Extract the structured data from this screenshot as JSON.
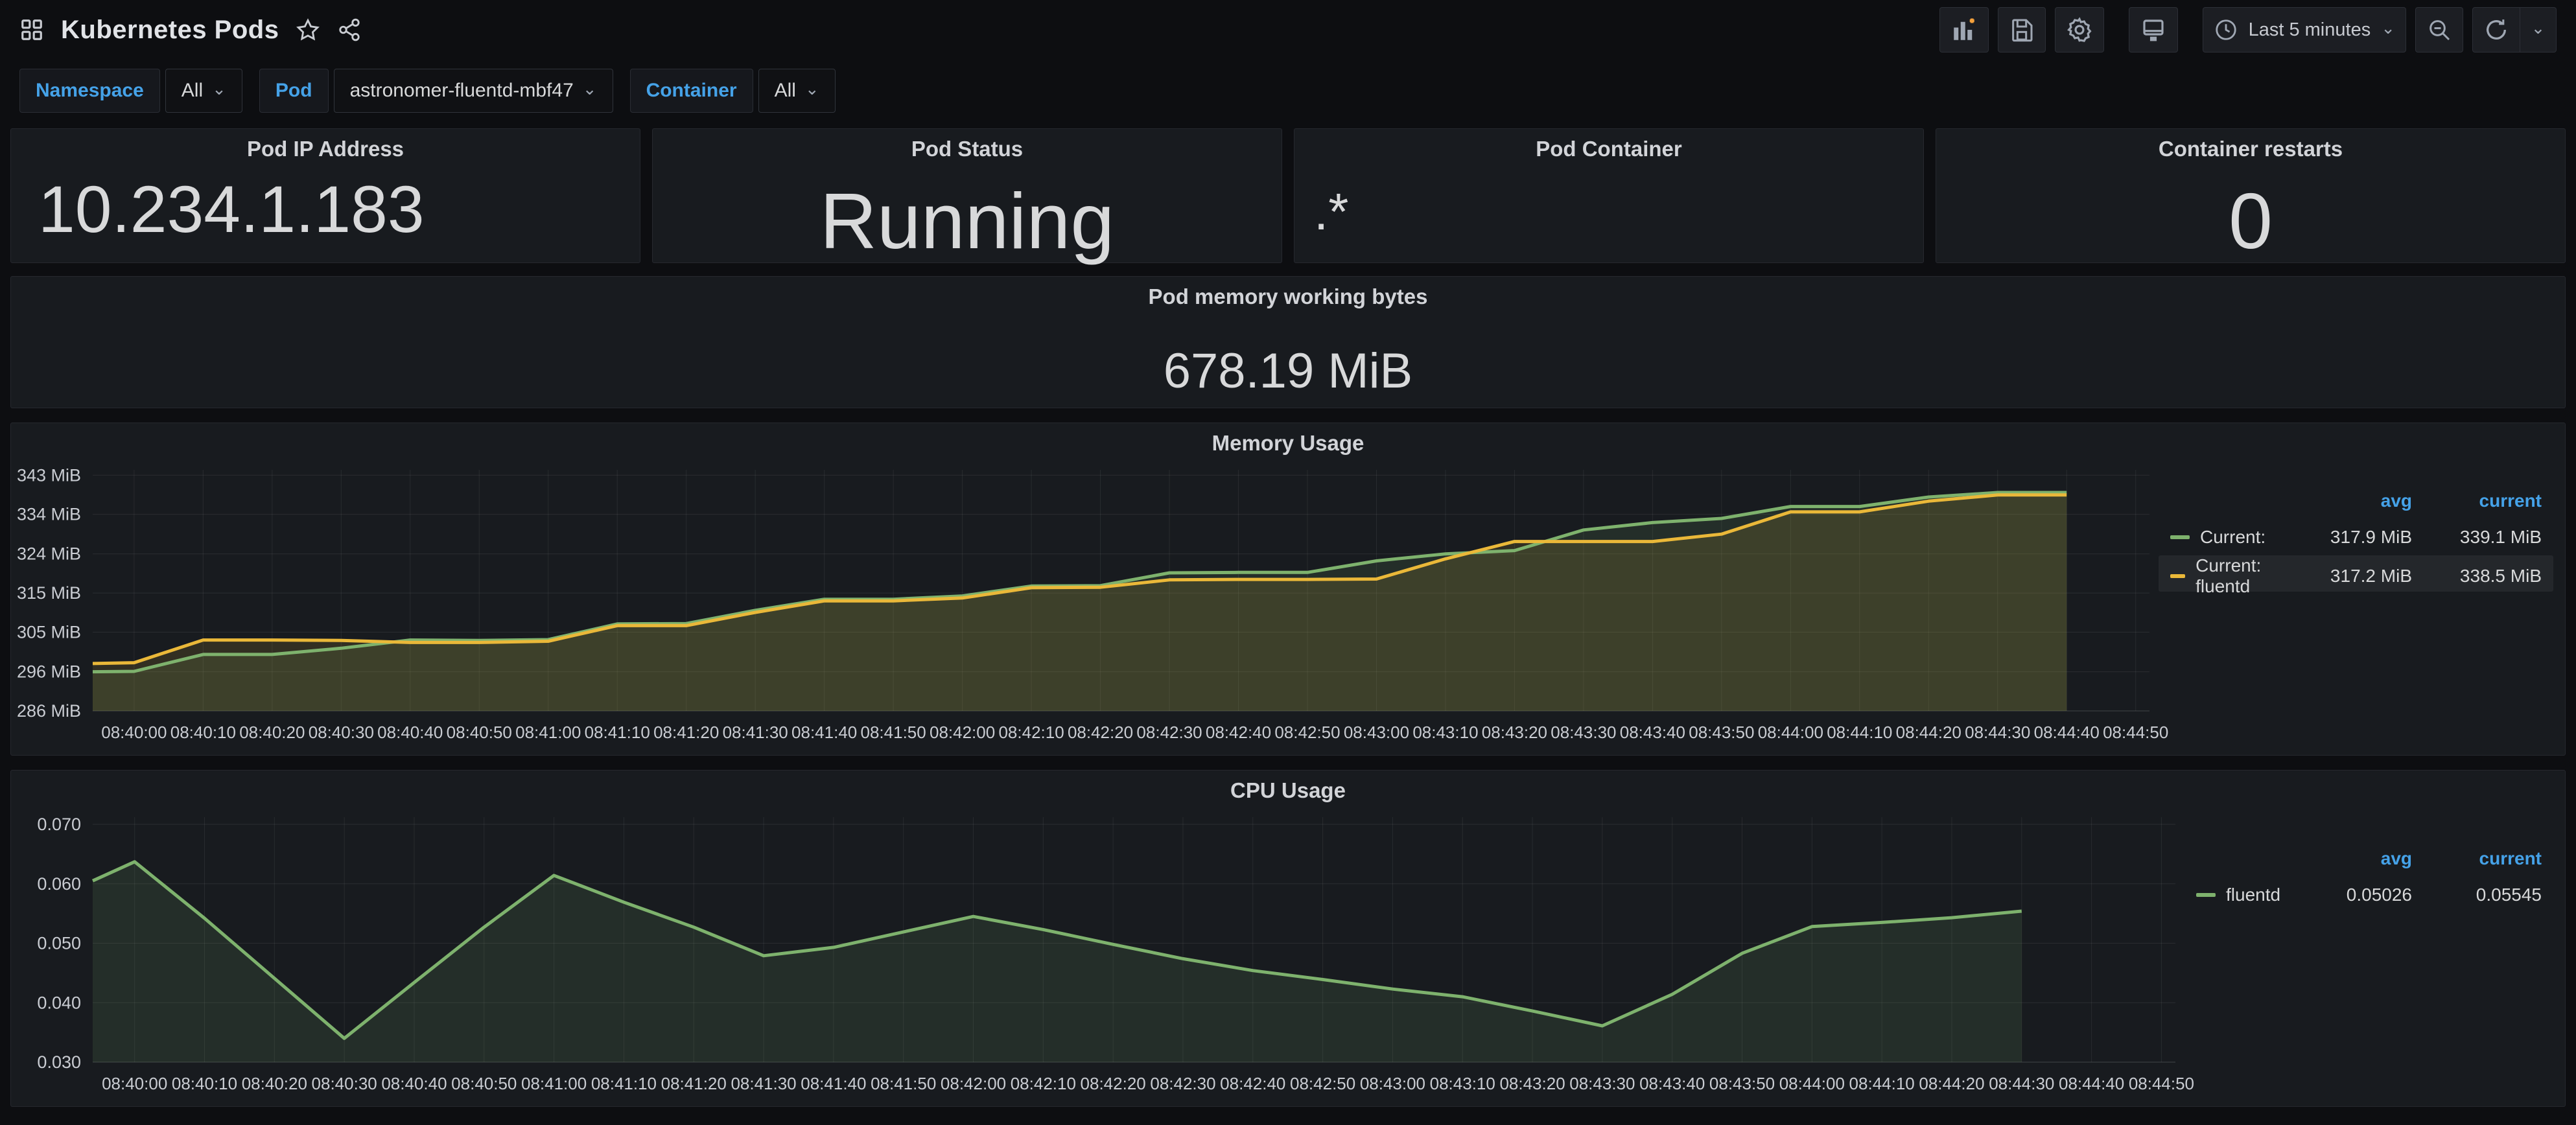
{
  "topbar": {
    "title": "Kubernetes Pods",
    "time_picker": {
      "label": "Last 5 minutes"
    }
  },
  "filters": [
    {
      "label": "Namespace",
      "value": "All"
    },
    {
      "label": "Pod",
      "value": "astronomer-fluentd-mbf47"
    },
    {
      "label": "Container",
      "value": "All"
    }
  ],
  "stats": [
    {
      "title": "Pod IP Address",
      "value": "10.234.1.183"
    },
    {
      "title": "Pod Status",
      "value": "Running"
    },
    {
      "title": "Pod Container",
      "value": ".*"
    },
    {
      "title": "Container restarts",
      "value": "0"
    }
  ],
  "memory_stat": {
    "title": "Pod memory working bytes",
    "value": "678.19 MiB"
  },
  "time_axis": {
    "start_seconds": 0,
    "step_seconds": 10,
    "labels": [
      "08:40:00",
      "08:40:10",
      "08:40:20",
      "08:40:30",
      "08:40:40",
      "08:40:50",
      "08:41:00",
      "08:41:10",
      "08:41:20",
      "08:41:30",
      "08:41:40",
      "08:41:50",
      "08:42:00",
      "08:42:10",
      "08:42:20",
      "08:42:30",
      "08:42:40",
      "08:42:50",
      "08:43:00",
      "08:43:10",
      "08:43:20",
      "08:43:30",
      "08:43:40",
      "08:43:50",
      "08:44:00",
      "08:44:10",
      "08:44:20",
      "08:44:30",
      "08:44:40",
      "08:44:50"
    ]
  },
  "chart_data": [
    {
      "id": "memory-usage",
      "type": "area",
      "title": "Memory Usage",
      "unit": "MiB",
      "xlim": [
        -6,
        292
      ],
      "ylim": [
        286.1,
        344.6
      ],
      "yticks": [
        {
          "v": 286.1,
          "label": "286 MiB"
        },
        {
          "v": 295.6,
          "label": "296 MiB"
        },
        {
          "v": 305.2,
          "label": "305 MiB"
        },
        {
          "v": 314.7,
          "label": "315 MiB"
        },
        {
          "v": 324.2,
          "label": "324 MiB"
        },
        {
          "v": 333.8,
          "label": "334 MiB"
        },
        {
          "v": 343.3,
          "label": "343 MiB"
        }
      ],
      "series": [
        {
          "name": "Current:",
          "color": "#7EB26D",
          "x": [
            -6,
            0,
            10,
            20,
            30,
            40,
            50,
            60,
            70,
            80,
            90,
            100,
            110,
            120,
            130,
            140,
            150,
            160,
            170,
            180,
            190,
            200,
            210,
            220,
            230,
            240,
            250,
            260,
            270,
            280
          ],
          "values": [
            295.6,
            295.7,
            299.8,
            299.8,
            301.3,
            303.3,
            303.2,
            303.4,
            307.2,
            307.3,
            310.5,
            313.2,
            313.2,
            314.0,
            316.4,
            316.5,
            319.6,
            319.7,
            319.7,
            322.5,
            324.2,
            325.0,
            330.0,
            331.8,
            332.8,
            335.7,
            335.7,
            338.0,
            339.1,
            339.1
          ]
        },
        {
          "name": "Current: fluentd",
          "color": "#EAB839",
          "x": [
            -6,
            0,
            10,
            20,
            30,
            40,
            50,
            60,
            70,
            80,
            90,
            100,
            110,
            120,
            130,
            140,
            150,
            160,
            170,
            180,
            190,
            200,
            210,
            220,
            230,
            240,
            250,
            260,
            270,
            280
          ],
          "values": [
            297.6,
            297.8,
            303.3,
            303.3,
            303.2,
            302.7,
            302.7,
            303.0,
            306.8,
            306.8,
            310.0,
            312.8,
            312.8,
            313.5,
            316.0,
            316.1,
            317.9,
            318.0,
            318.0,
            318.1,
            323.0,
            327.2,
            327.2,
            327.2,
            329.0,
            334.4,
            334.4,
            337.0,
            338.5,
            338.5
          ]
        }
      ],
      "legend": {
        "headers": [
          "avg",
          "current"
        ],
        "rows": [
          {
            "name": "Current:",
            "color": "#7EB26D",
            "avg": "317.9 MiB",
            "current": "339.1 MiB",
            "highlight": false
          },
          {
            "name": "Current: fluentd",
            "color": "#EAB839",
            "avg": "317.2 MiB",
            "current": "338.5 MiB",
            "highlight": true
          }
        ]
      }
    },
    {
      "id": "cpu-usage",
      "type": "area",
      "title": "CPU Usage",
      "unit": "",
      "xlim": [
        -6,
        292
      ],
      "ylim": [
        0.03,
        0.0712
      ],
      "yticks": [
        {
          "v": 0.03,
          "label": "0.030"
        },
        {
          "v": 0.04,
          "label": "0.040"
        },
        {
          "v": 0.05,
          "label": "0.050"
        },
        {
          "v": 0.06,
          "label": "0.060"
        },
        {
          "v": 0.07,
          "label": "0.070"
        }
      ],
      "series": [
        {
          "name": "fluentd",
          "color": "#7EB26D",
          "x": [
            -6,
            0,
            10,
            20,
            30,
            40,
            50,
            60,
            70,
            80,
            90,
            100,
            110,
            120,
            130,
            140,
            150,
            160,
            170,
            180,
            190,
            200,
            210,
            220,
            230,
            240,
            250,
            260,
            270
          ],
          "values": [
            0.0605,
            0.0637,
            0.0542,
            0.0441,
            0.034,
            0.0434,
            0.0527,
            0.0614,
            0.0569,
            0.0527,
            0.0479,
            0.0493,
            0.0519,
            0.0545,
            0.0523,
            0.0498,
            0.0474,
            0.0454,
            0.0439,
            0.0423,
            0.041,
            0.0386,
            0.0361,
            0.0414,
            0.0483,
            0.0528,
            0.0535,
            0.0543,
            0.0554
          ]
        }
      ],
      "legend": {
        "headers": [
          "avg",
          "current"
        ],
        "rows": [
          {
            "name": "fluentd",
            "color": "#7EB26D",
            "avg": "0.05026",
            "current": "0.05545",
            "highlight": false
          }
        ]
      }
    }
  ]
}
